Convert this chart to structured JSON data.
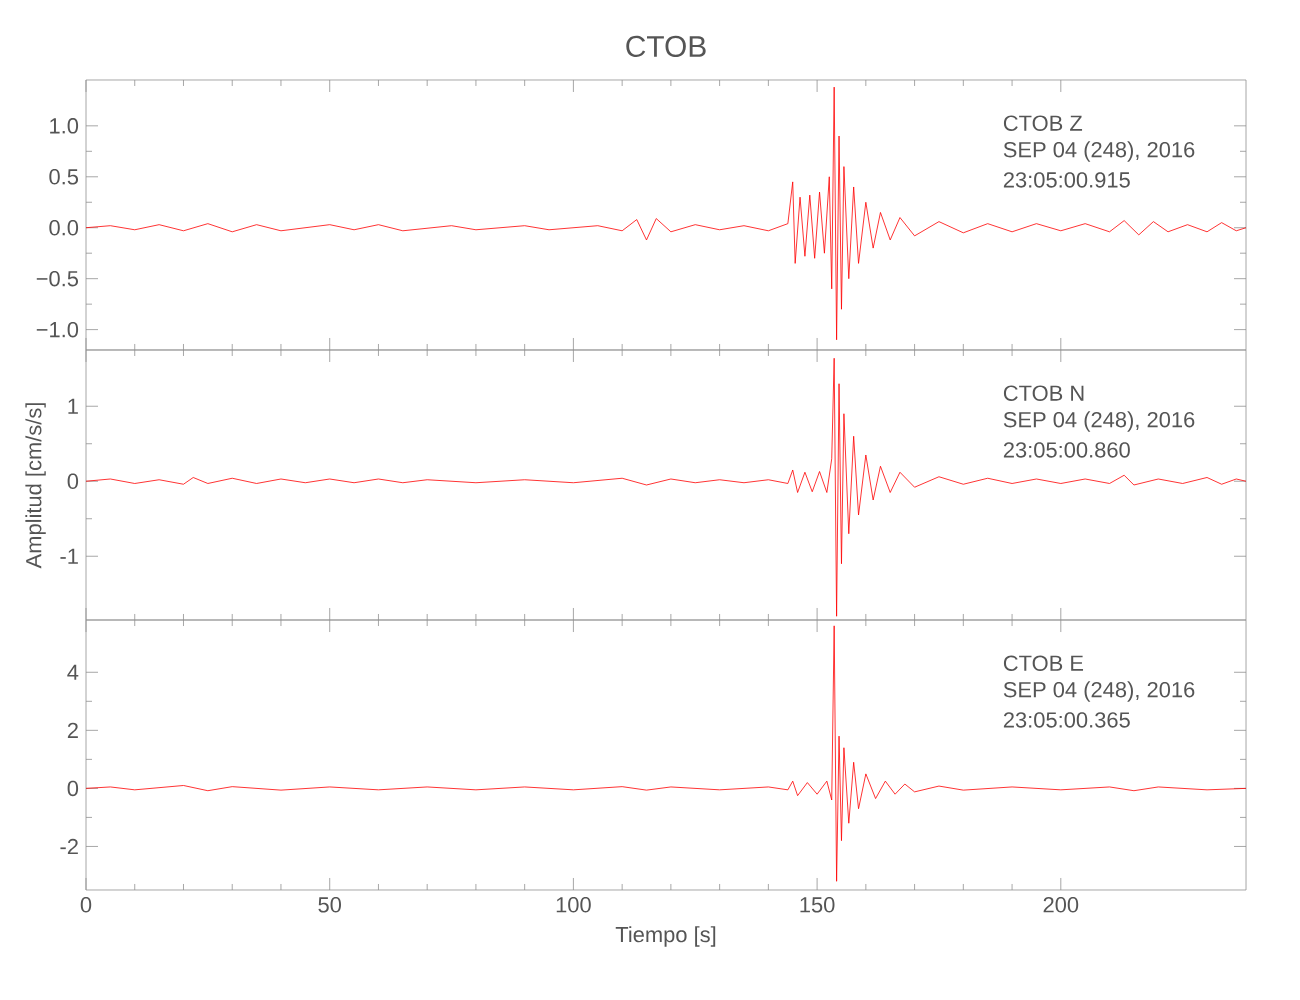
{
  "chart_data": [
    {
      "type": "line",
      "title": "CTOB",
      "xlim": [
        0,
        238
      ],
      "xticks": [
        0,
        50,
        100,
        150,
        200
      ],
      "tick_labels": "y",
      "ylim": [
        -1.2,
        1.45
      ],
      "yticks": [
        {
          "value": -1.0,
          "label": "−1.0"
        },
        {
          "value": -0.5,
          "label": "−0.5"
        },
        {
          "value": 0,
          "label": "0.0"
        },
        {
          "value": 0.5,
          "label": "0.5"
        },
        {
          "value": 1.0,
          "label": "1.0"
        }
      ],
      "annotations": [
        "CTOB   Z",
        "SEP 04 (248), 2016",
        "23:05:00.915"
      ],
      "x": [
        0,
        5,
        10,
        15,
        20,
        25,
        30,
        35,
        40,
        50,
        55,
        60,
        65,
        75,
        80,
        90,
        95,
        105,
        110,
        113,
        115,
        117,
        120,
        125,
        130,
        135,
        140,
        144,
        145,
        145.5,
        146.5,
        147.5,
        148.5,
        149.5,
        150.5,
        151.5,
        152.5,
        153,
        153.5,
        154,
        154.5,
        155,
        155.5,
        156.5,
        157.5,
        158.5,
        160,
        161.5,
        163,
        165,
        167,
        170,
        175,
        180,
        185,
        190,
        195,
        200,
        205,
        210,
        213,
        216,
        219,
        222,
        226,
        230,
        233,
        236,
        238
      ],
      "series": [
        {
          "color": "#ff0000",
          "values": [
            0,
            0.02,
            -0.02,
            0.03,
            -0.03,
            0.04,
            -0.04,
            0.03,
            -0.03,
            0.03,
            -0.02,
            0.03,
            -0.03,
            0.02,
            -0.02,
            0.02,
            -0.02,
            0.02,
            -0.03,
            0.08,
            -0.12,
            0.09,
            -0.04,
            0.03,
            -0.02,
            0.02,
            -0.03,
            0.04,
            0.45,
            -0.35,
            0.3,
            -0.28,
            0.32,
            -0.3,
            0.35,
            -0.25,
            0.5,
            -0.6,
            1.38,
            -1.1,
            0.9,
            -0.8,
            0.6,
            -0.5,
            0.4,
            -0.35,
            0.25,
            -0.2,
            0.15,
            -0.12,
            0.1,
            -0.08,
            0.06,
            -0.05,
            0.04,
            -0.04,
            0.04,
            -0.03,
            0.04,
            -0.04,
            0.07,
            -0.07,
            0.06,
            -0.04,
            0.03,
            -0.04,
            0.05,
            -0.03,
            0
          ]
        }
      ]
    },
    {
      "type": "line",
      "ylabel": "Amplitud [cm/s/s]",
      "xlim": [
        0,
        238
      ],
      "xticks": [
        0,
        50,
        100,
        150,
        200
      ],
      "tick_labels": "y",
      "ylim": [
        -1.85,
        1.75
      ],
      "yticks": [
        -1,
        0,
        1
      ],
      "annotations": [
        "CTOB   N",
        "SEP 04 (248), 2016",
        "23:05:00.860"
      ],
      "x": [
        0,
        5,
        10,
        15,
        20,
        22,
        25,
        30,
        35,
        40,
        45,
        50,
        55,
        60,
        65,
        70,
        80,
        90,
        100,
        110,
        115,
        120,
        125,
        130,
        135,
        140,
        144,
        145,
        146,
        147.5,
        149,
        150.5,
        152,
        153,
        153.5,
        154,
        154.5,
        155,
        155.5,
        156.5,
        157.5,
        158.5,
        160,
        161.5,
        163,
        165,
        167,
        170,
        175,
        180,
        185,
        190,
        195,
        200,
        205,
        210,
        213,
        215,
        220,
        225,
        230,
        233,
        236,
        238
      ],
      "series": [
        {
          "color": "#ff0000",
          "values": [
            0,
            0.03,
            -0.03,
            0.02,
            -0.04,
            0.05,
            -0.03,
            0.04,
            -0.03,
            0.03,
            -0.02,
            0.03,
            -0.02,
            0.03,
            -0.02,
            0.02,
            -0.02,
            0.02,
            -0.02,
            0.04,
            -0.05,
            0.03,
            -0.02,
            0.02,
            -0.02,
            0.02,
            -0.03,
            0.15,
            -0.15,
            0.12,
            -0.14,
            0.13,
            -0.15,
            0.3,
            1.64,
            -1.8,
            1.3,
            -1.1,
            0.9,
            -0.7,
            0.6,
            -0.45,
            0.35,
            -0.25,
            0.2,
            -0.15,
            0.12,
            -0.08,
            0.06,
            -0.04,
            0.04,
            -0.03,
            0.03,
            -0.03,
            0.03,
            -0.03,
            0.08,
            -0.05,
            0.03,
            -0.03,
            0.05,
            -0.04,
            0.03,
            0
          ]
        }
      ]
    },
    {
      "type": "line",
      "xlabel": "Tiempo [s]",
      "xlim": [
        0,
        238
      ],
      "xticks": [
        0,
        50,
        100,
        150,
        200
      ],
      "ylim": [
        -3.5,
        5.8
      ],
      "yticks": [
        -2,
        0,
        2,
        4
      ],
      "annotations": [
        "CTOB   E",
        "SEP 04 (248), 2016",
        "23:05:00.365"
      ],
      "x": [
        0,
        5,
        10,
        20,
        25,
        30,
        40,
        50,
        60,
        70,
        80,
        90,
        100,
        110,
        115,
        120,
        130,
        140,
        144,
        145,
        146,
        148,
        150,
        152,
        153,
        153.5,
        154,
        154.5,
        155,
        155.5,
        156.5,
        157.5,
        158.5,
        160,
        162,
        164,
        166,
        168,
        170,
        175,
        180,
        190,
        200,
        210,
        215,
        220,
        230,
        238
      ],
      "series": [
        {
          "color": "#ff0000",
          "values": [
            0,
            0.05,
            -0.05,
            0.1,
            -0.08,
            0.06,
            -0.06,
            0.05,
            -0.05,
            0.05,
            -0.05,
            0.05,
            -0.05,
            0.06,
            -0.06,
            0.05,
            -0.05,
            0.05,
            -0.05,
            0.25,
            -0.25,
            0.2,
            -0.2,
            0.25,
            -0.4,
            5.6,
            -3.2,
            1.8,
            -1.8,
            1.4,
            -1.2,
            0.9,
            -0.7,
            0.5,
            -0.35,
            0.25,
            -0.2,
            0.15,
            -0.12,
            0.08,
            -0.06,
            0.05,
            -0.05,
            0.05,
            -0.08,
            0.05,
            -0.05,
            0
          ]
        }
      ]
    }
  ]
}
